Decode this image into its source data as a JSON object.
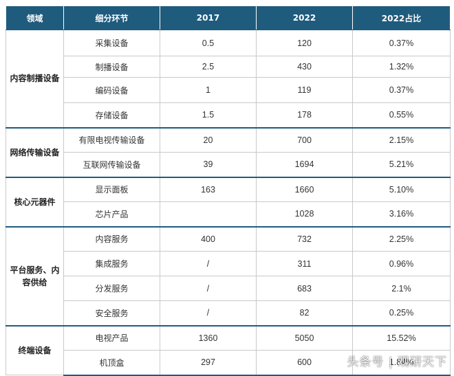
{
  "table": {
    "headers": [
      "领域",
      "细分环节",
      "2017",
      "2022",
      "2022占比"
    ],
    "groups": [
      {
        "domain": "内容制播设备",
        "rows": [
          {
            "segment": "采集设备",
            "v2017": "0.5",
            "v2022": "120",
            "share": "0.37%"
          },
          {
            "segment": "制播设备",
            "v2017": "2.5",
            "v2022": "430",
            "share": "1.32%"
          },
          {
            "segment": "编码设备",
            "v2017": "1",
            "v2022": "119",
            "share": "0.37%"
          },
          {
            "segment": "存储设备",
            "v2017": "1.5",
            "v2022": "178",
            "share": "0.55%"
          }
        ]
      },
      {
        "domain": "网络传输设备",
        "rows": [
          {
            "segment": "有限电视传输设备",
            "v2017": "20",
            "v2022": "700",
            "share": "2.15%"
          },
          {
            "segment": "互联网传输设备",
            "v2017": "39",
            "v2022": "1694",
            "share": "5.21%"
          }
        ]
      },
      {
        "domain": "核心元器件",
        "rows": [
          {
            "segment": "显示面板",
            "v2017": "163",
            "v2022": "1660",
            "share": "5.10%"
          },
          {
            "segment": "芯片产品",
            "v2017": "",
            "v2022": "1028",
            "share": "3.16%"
          }
        ]
      },
      {
        "domain": "平台服务、内容供给",
        "rows": [
          {
            "segment": "内容服务",
            "v2017": "400",
            "v2022": "732",
            "share": "2.25%"
          },
          {
            "segment": "集成服务",
            "v2017": "/",
            "v2022": "311",
            "share": "0.96%"
          },
          {
            "segment": "分发服务",
            "v2017": "/",
            "v2022": "683",
            "share": "2.1%"
          },
          {
            "segment": "安全服务",
            "v2017": "/",
            "v2022": "82",
            "share": "0.25%"
          }
        ]
      },
      {
        "domain": "终端设备",
        "rows": [
          {
            "segment": "电视产品",
            "v2017": "1360",
            "v2022": "5050",
            "share": "15.52%"
          },
          {
            "segment": "机顶盒",
            "v2017": "297",
            "v2022": "600",
            "share": "1.84%"
          }
        ]
      }
    ]
  },
  "watermark": "头条号 | 观研天下"
}
